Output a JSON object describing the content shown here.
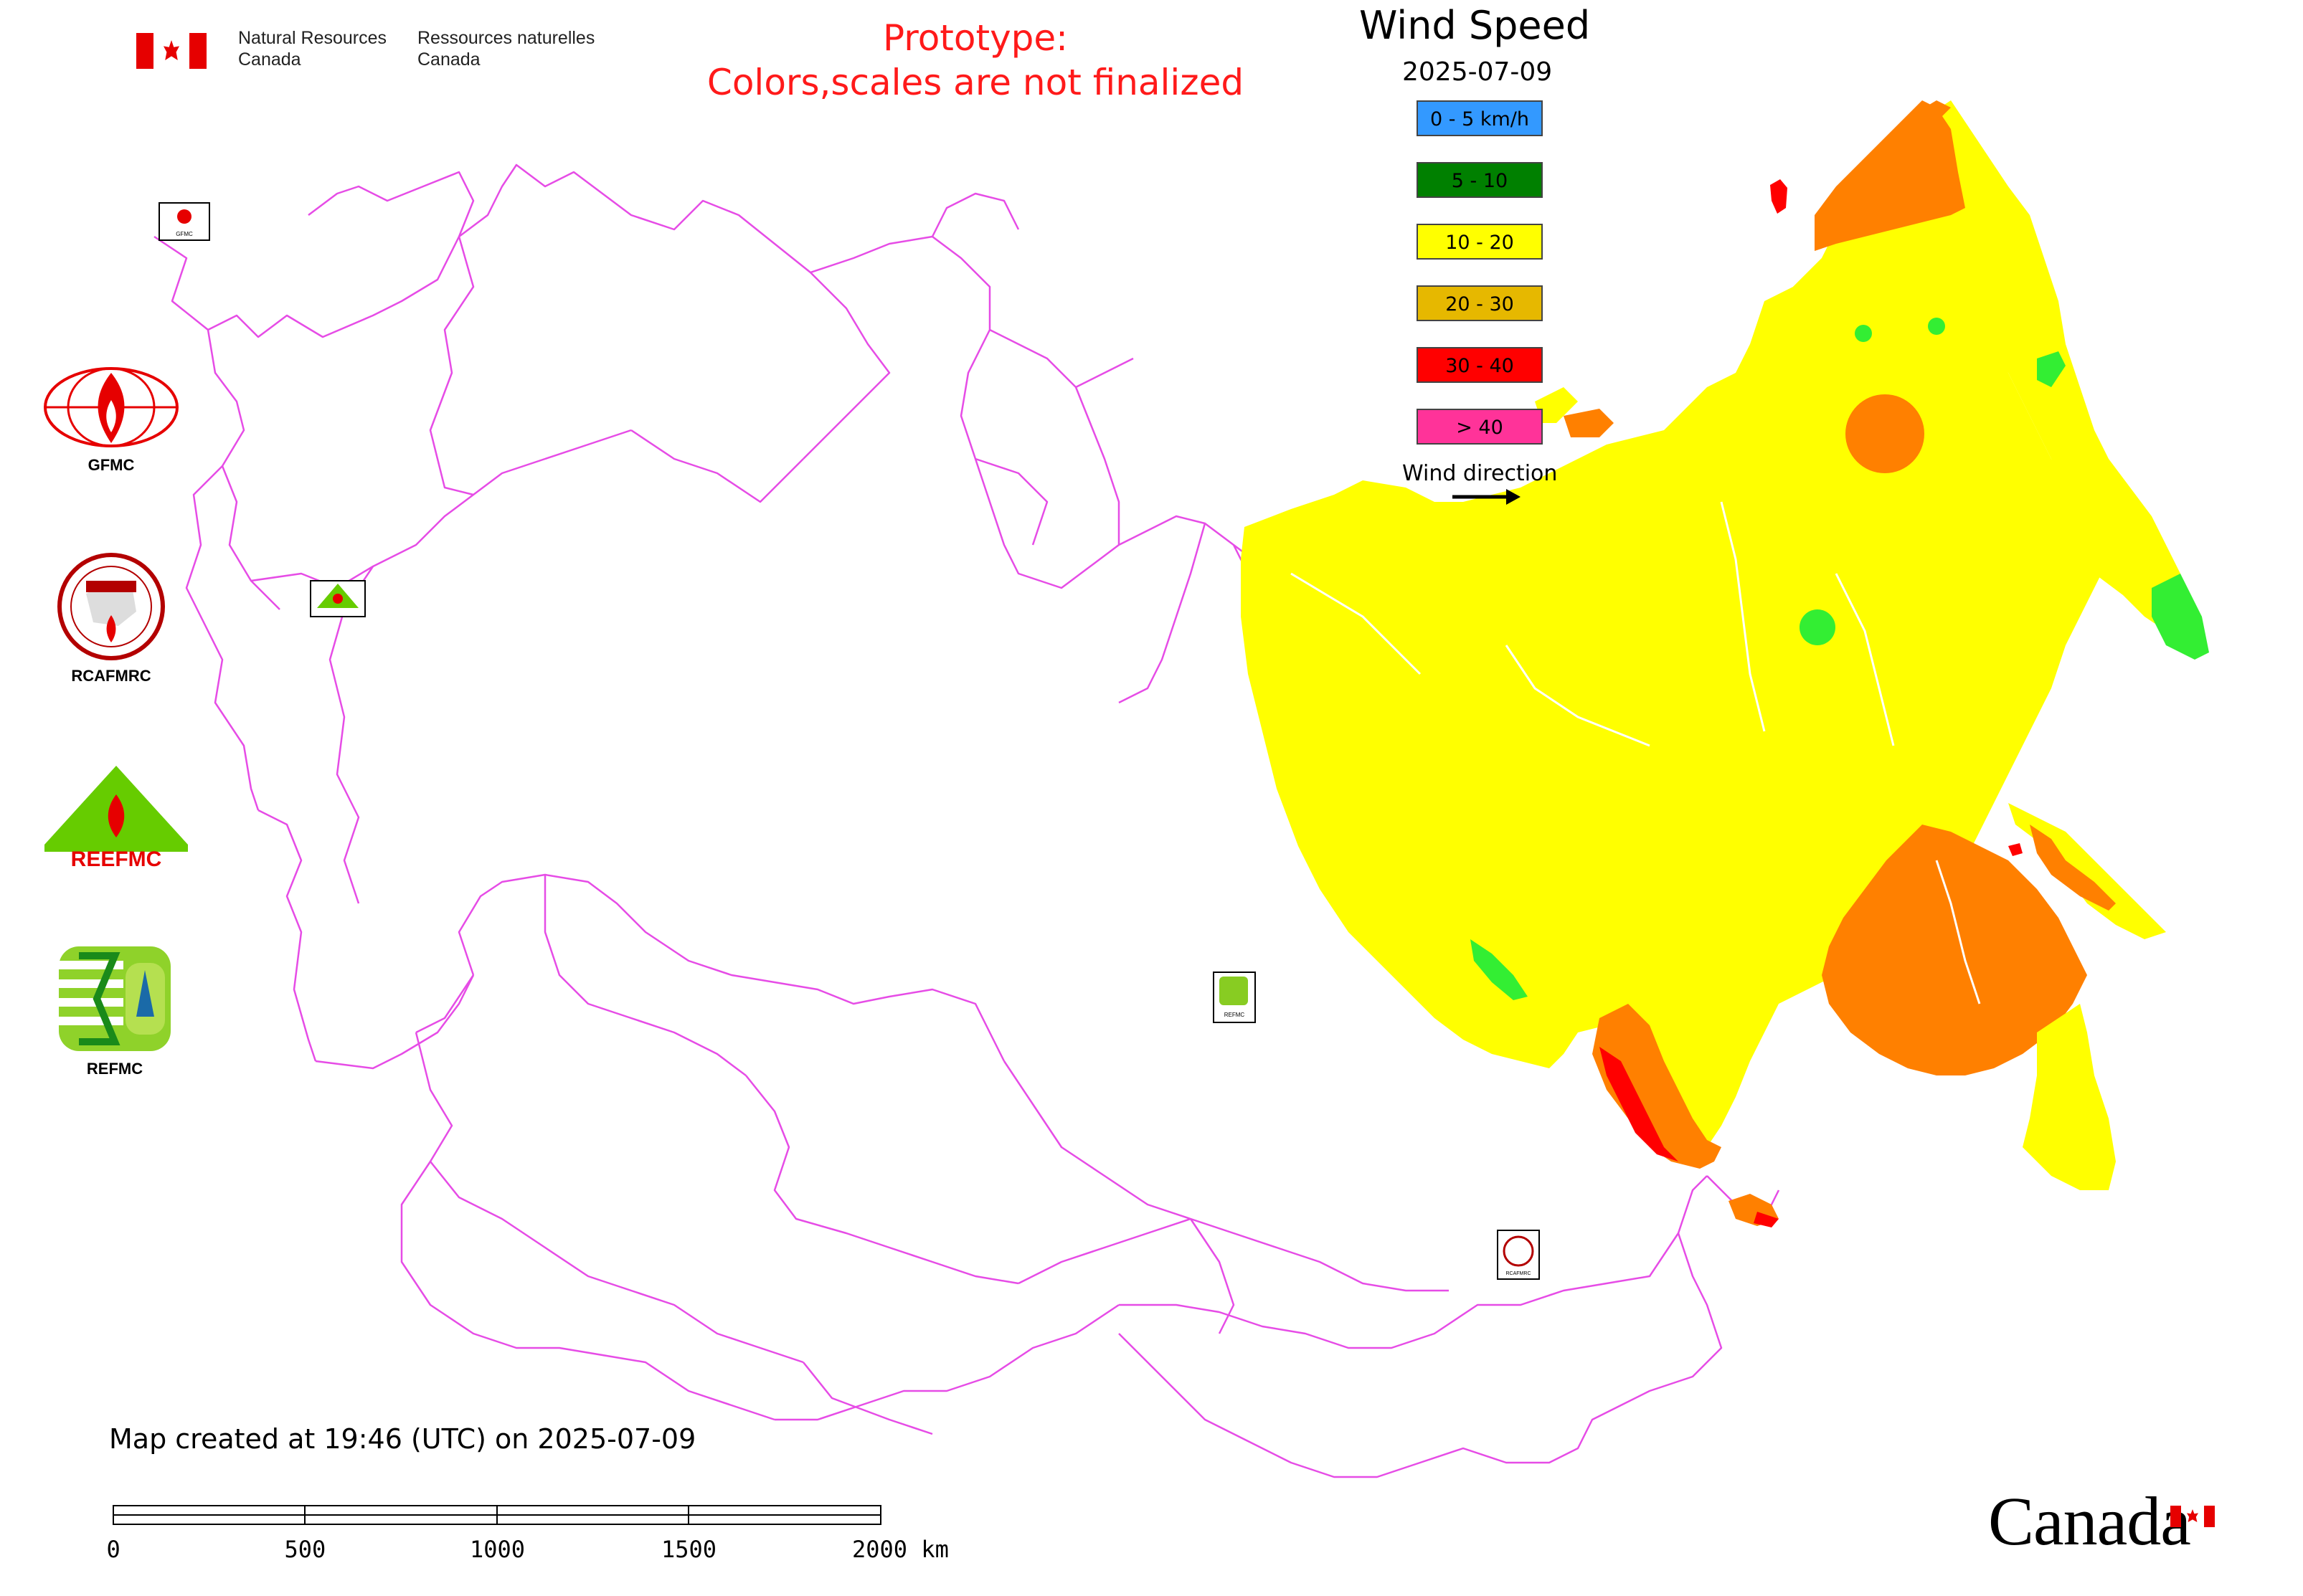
{
  "header": {
    "agency_en_line1": "Natural Resources",
    "agency_en_line2": "Canada",
    "agency_fr_line1": "Ressources naturelles",
    "agency_fr_line2": "Canada",
    "prototype_line1": "Prototype:",
    "prototype_line2": "Colors,scales are not finalized",
    "prototype_color": "#ff1a1a"
  },
  "legend": {
    "title": "Wind Speed",
    "date": "2025-07-09",
    "items": [
      {
        "label": "0 - 5 km/h",
        "color": "#3399ff"
      },
      {
        "label": "5 - 10",
        "color": "#008000"
      },
      {
        "label": "10 - 20",
        "color": "#ffff00"
      },
      {
        "label": "20 - 30",
        "color": "#e6b800"
      },
      {
        "label": "30 - 40",
        "color": "#ff0000"
      },
      {
        "label": "> 40",
        "color": "#ff3399"
      }
    ],
    "wind_direction_label": "Wind direction"
  },
  "organizations": [
    {
      "label": "GFMC",
      "icon": "gfmc-logo-icon"
    },
    {
      "label": "RCAFMRC",
      "icon": "rcafmrc-logo-icon"
    },
    {
      "label": "REEFMC",
      "icon": "reefmc-logo-icon"
    },
    {
      "label": "REFMC",
      "icon": "refmc-logo-icon"
    }
  ],
  "map_markers": [
    {
      "label": "GFMC",
      "icon": "gfmc-marker-icon"
    },
    {
      "label": "REEFMC",
      "icon": "reefmc-marker-icon"
    },
    {
      "label": "REFMC",
      "icon": "refmc-marker-icon"
    },
    {
      "label": "RCAFMRC",
      "icon": "rcafmrc-marker-icon"
    }
  ],
  "footer": {
    "created_text": "Map created at 19:46 (UTC) on 2025-07-09",
    "scale_ticks": [
      "0",
      "500",
      "1000",
      "1500",
      "2000 km"
    ],
    "canada_wordmark": "Canada"
  },
  "colors": {
    "border": "#e64ce6",
    "yellow": "#ffff00",
    "orange": "#ff8000",
    "red": "#ff0000",
    "green": "#33ee33"
  }
}
